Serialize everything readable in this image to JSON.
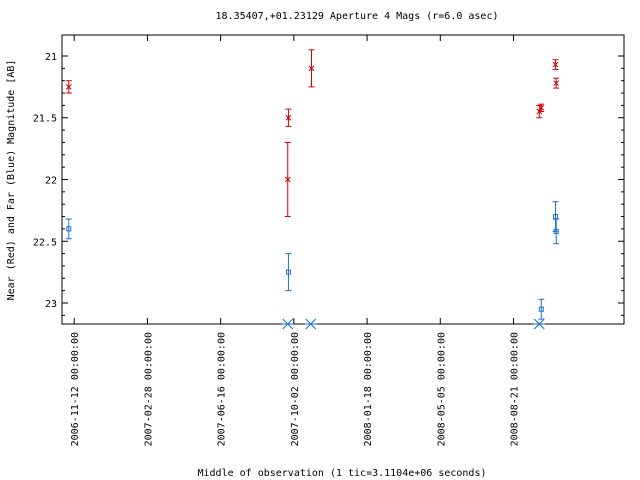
{
  "chart_data": {
    "type": "scatter",
    "title": "18.35407,+01.23129   Aperture 4 Mags (r=6.0 asec)",
    "xlabel": "Middle of observation (1 tic=3.1104e+06 seconds)",
    "ylabel": "Near (Red) and Far (Blue) Magnitude [AB]",
    "xlim": [
      "2006-10-25",
      "2009-01-31"
    ],
    "ylim": [
      23.17,
      20.83
    ],
    "y_reversed": true,
    "grid": false,
    "x_ticks": [
      "2006-11-12 00:00:00",
      "2007-02-28 00:00:00",
      "2007-06-16 00:00:00",
      "2007-10-02 00:00:00",
      "2008-01-18 00:00:00",
      "2008-05-05 00:00:00",
      "2008-08-21 00:00:00"
    ],
    "y_ticks": [
      21,
      21.5,
      22,
      22.5,
      23
    ],
    "y_tick_labels": [
      "21",
      "21.5",
      "22",
      "22.5",
      "23"
    ],
    "series": [
      {
        "color": "#cc0000",
        "marker": "x",
        "points": [
          {
            "x": "2006-11-04",
            "y": 21.25,
            "err": 0.05
          },
          {
            "x": "2007-09-23",
            "y": 22.0,
            "err": 0.3
          },
          {
            "x": "2007-09-24",
            "y": 21.5,
            "err": 0.07
          },
          {
            "x": "2007-10-28",
            "y": 21.1,
            "err": 0.15
          },
          {
            "x": "2008-09-28",
            "y": 21.45,
            "err": 0.05
          },
          {
            "x": "2008-10-01",
            "y": 21.42,
            "err": 0.03
          },
          {
            "x": "2008-10-22",
            "y": 21.07,
            "err": 0.04
          },
          {
            "x": "2008-10-23",
            "y": 21.22,
            "err": 0.04
          }
        ]
      },
      {
        "color": "#1a6fd4",
        "marker": "square",
        "points": [
          {
            "x": "2006-11-04",
            "y": 22.4,
            "err": 0.08
          },
          {
            "x": "2007-09-24",
            "y": 22.75,
            "err": 0.15
          },
          {
            "x": "2008-10-01",
            "y": 23.05,
            "err": 0.08
          },
          {
            "x": "2008-10-22",
            "y": 22.3,
            "err": 0.12
          },
          {
            "x": "2008-10-23",
            "y": 22.42,
            "err": 0.1
          }
        ]
      }
    ],
    "limit_markers": [
      {
        "x": "2007-09-23",
        "marker": "asterisk"
      },
      {
        "x": "2007-10-27",
        "marker": "asterisk"
      },
      {
        "x": "2008-09-28",
        "marker": "asterisk"
      }
    ]
  }
}
